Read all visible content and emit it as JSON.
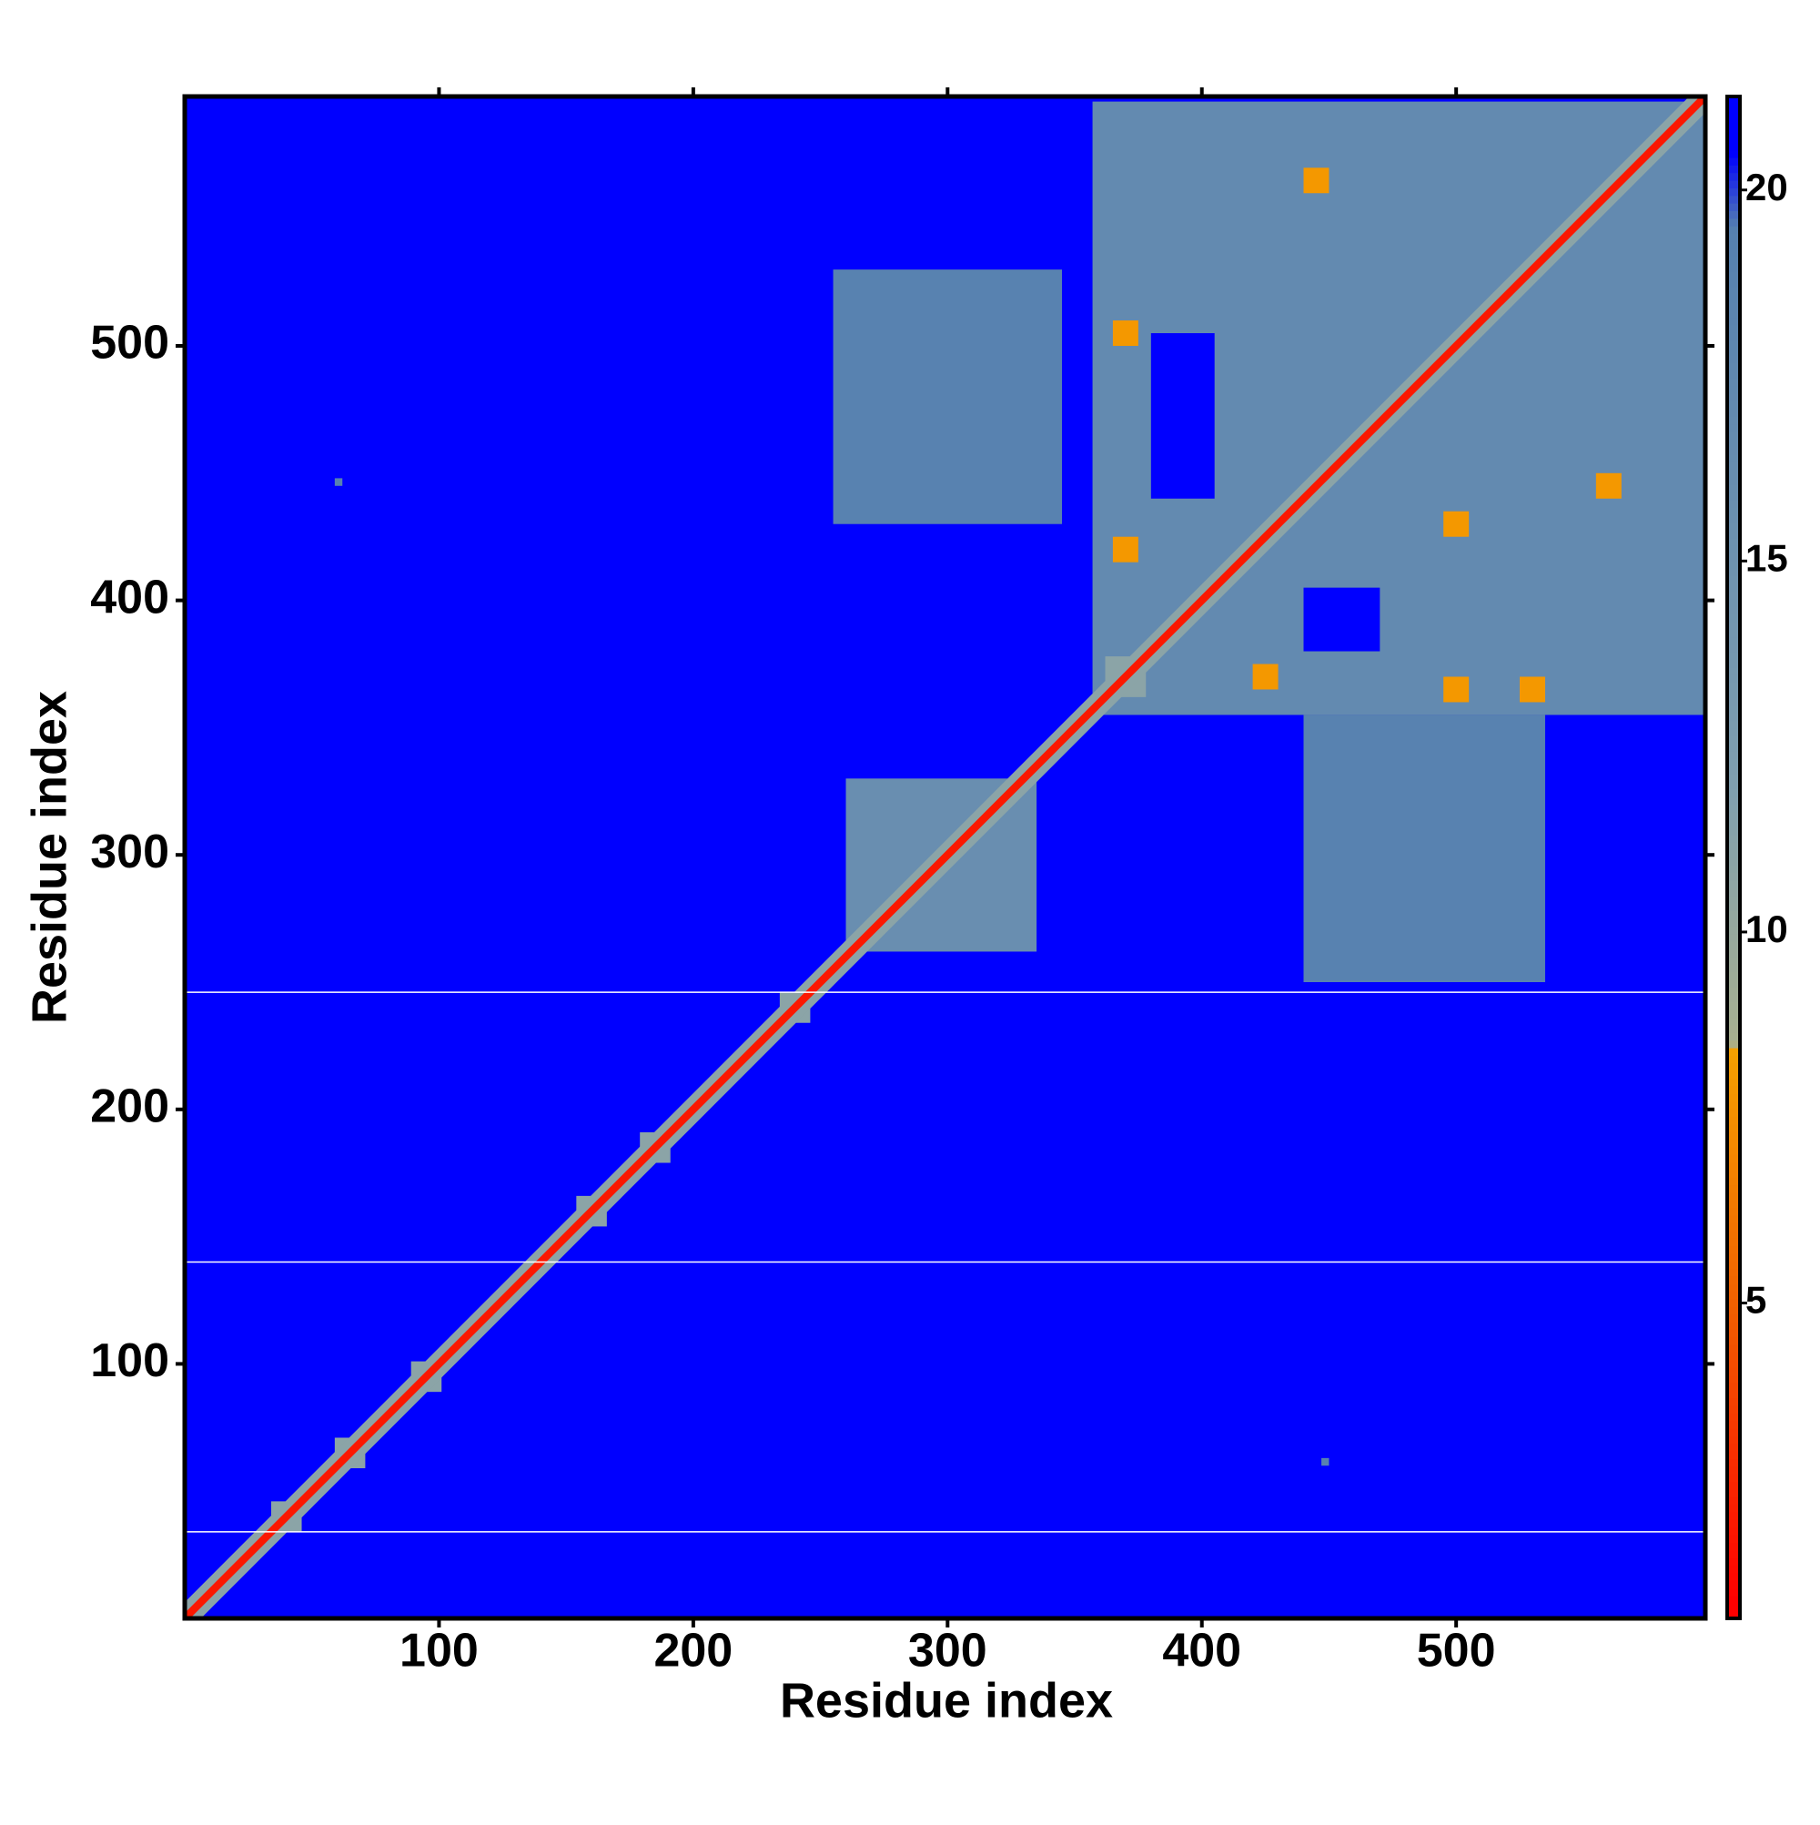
{
  "chart_data": {
    "type": "heatmap",
    "x_label": "Residue index",
    "y_label": "Residue index",
    "xlim": [
      0,
      598
    ],
    "ylim": [
      0,
      598
    ],
    "xticks": [
      100,
      200,
      300,
      400,
      500
    ],
    "yticks": [
      100,
      200,
      300,
      400,
      500
    ],
    "fill_value": 21,
    "colorbar": {
      "lim": [
        0.75,
        21.26
      ],
      "ticks": [
        5,
        10,
        15,
        20
      ],
      "stops": [
        {
          "value": 1,
          "color": "#ff0000"
        },
        {
          "value": 5,
          "color": "#f06000"
        },
        {
          "value": 8.4,
          "color": "#f5a000"
        },
        {
          "value": 8.5,
          "color": "#a8b090"
        },
        {
          "value": 12,
          "color": "#7f9fb0"
        },
        {
          "value": 19.5,
          "color": "#5580b0"
        },
        {
          "value": 20.5,
          "color": "#0000ff"
        }
      ]
    },
    "regions": [
      {
        "x": [
          357,
          598
        ],
        "y": [
          355,
          596
        ],
        "value": 17
      },
      {
        "x": [
          380,
          405
        ],
        "y": [
          440,
          505
        ],
        "value": 21
      },
      {
        "x": [
          440,
          470
        ],
        "y": [
          380,
          405
        ],
        "value": 21
      },
      {
        "x": [
          440,
          535
        ],
        "y": [
          250,
          355
        ],
        "value": 19
      },
      {
        "x": [
          255,
          345
        ],
        "y": [
          430,
          530
        ],
        "value": 19
      },
      {
        "x": [
          260,
          335
        ],
        "y": [
          262,
          330
        ],
        "value": 16
      },
      {
        "x": [
          440,
          450
        ],
        "y": [
          560,
          570
        ],
        "value": 8
      },
      {
        "x": [
          365,
          375
        ],
        "y": [
          500,
          510
        ],
        "value": 8
      },
      {
        "x": [
          365,
          375
        ],
        "y": [
          415,
          425
        ],
        "value": 8
      },
      {
        "x": [
          495,
          505
        ],
        "y": [
          425,
          435
        ],
        "value": 8
      },
      {
        "x": [
          555,
          565
        ],
        "y": [
          440,
          450
        ],
        "value": 8
      },
      {
        "x": [
          525,
          535
        ],
        "y": [
          360,
          370
        ],
        "value": 8
      },
      {
        "x": [
          420,
          430
        ],
        "y": [
          365,
          375
        ],
        "value": 8
      },
      {
        "x": [
          495,
          505
        ],
        "y": [
          360,
          370
        ],
        "value": 8
      },
      {
        "x": [
          34,
          46
        ],
        "y": [
          34,
          46
        ],
        "value": 11
      },
      {
        "x": [
          59,
          71
        ],
        "y": [
          59,
          71
        ],
        "value": 11
      },
      {
        "x": [
          89,
          101
        ],
        "y": [
          89,
          101
        ],
        "value": 11
      },
      {
        "x": [
          154,
          166
        ],
        "y": [
          154,
          166
        ],
        "value": 11
      },
      {
        "x": [
          179,
          191
        ],
        "y": [
          179,
          191
        ],
        "value": 11
      },
      {
        "x": [
          234,
          246
        ],
        "y": [
          234,
          246
        ],
        "value": 11
      },
      {
        "x": [
          362,
          378
        ],
        "y": [
          362,
          378
        ],
        "value": 11
      },
      {
        "x": [
          59,
          62
        ],
        "y": [
          445,
          448
        ],
        "value": 19
      },
      {
        "x": [
          447,
          450
        ],
        "y": [
          60,
          63
        ],
        "value": 19
      }
    ],
    "diagonal": [
      {
        "width": 9,
        "value": 11
      },
      {
        "width": 3,
        "value": 2
      }
    ],
    "hlines": [
      246,
      140,
      34
    ]
  }
}
